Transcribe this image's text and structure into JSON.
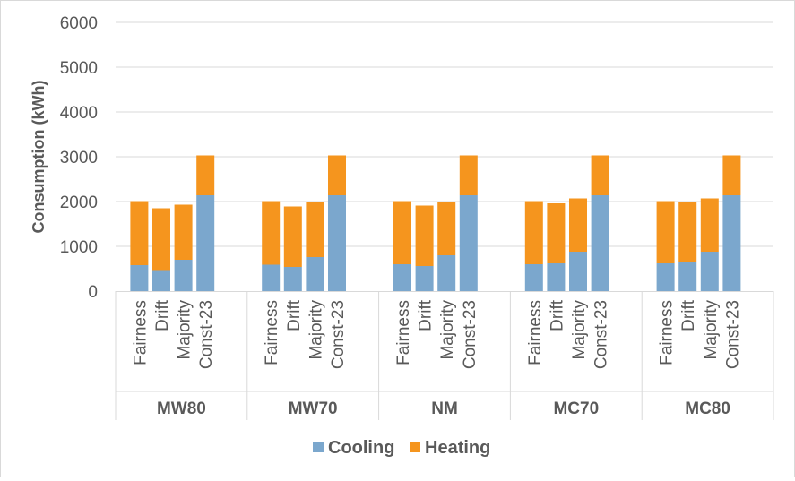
{
  "chart_data": {
    "type": "bar",
    "stacked": true,
    "ylabel": "Consumption (kWh)",
    "ylim": [
      0,
      6000
    ],
    "yticks": [
      0,
      1000,
      2000,
      3000,
      4000,
      5000,
      6000
    ],
    "grid": true,
    "legend_placement": "bottom",
    "groups": [
      "MW80",
      "MW70",
      "NM",
      "MC70",
      "MC80"
    ],
    "categories": [
      "Fairness",
      "Drift",
      "Majority",
      "Const-23"
    ],
    "series": [
      {
        "name": "Cooling",
        "color": "#7ba7cd",
        "values": [
          [
            580,
            470,
            700,
            2140
          ],
          [
            590,
            540,
            760,
            2140
          ],
          [
            600,
            560,
            800,
            2140
          ],
          [
            600,
            620,
            880,
            2140
          ],
          [
            620,
            640,
            880,
            2140
          ]
        ]
      },
      {
        "name": "Heating",
        "color": "#f5951e",
        "values": [
          [
            1430,
            1380,
            1230,
            890
          ],
          [
            1420,
            1350,
            1240,
            890
          ],
          [
            1410,
            1350,
            1200,
            890
          ],
          [
            1410,
            1340,
            1190,
            890
          ],
          [
            1390,
            1340,
            1190,
            890
          ]
        ]
      }
    ]
  }
}
